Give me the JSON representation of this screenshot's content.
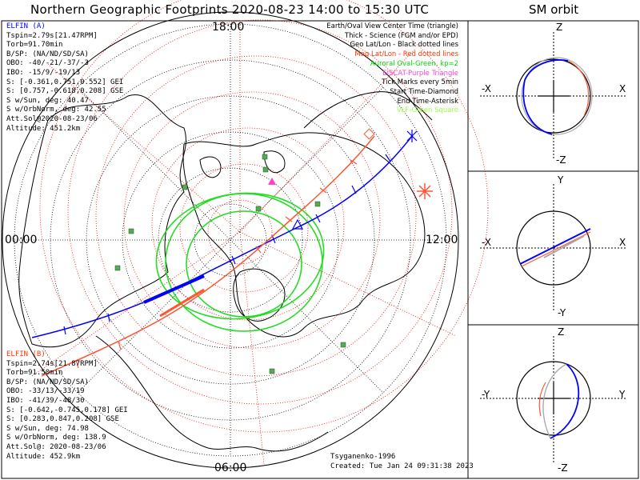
{
  "title": "Northern Geographic Footprints 2020-08-23 14:00 to 15:30 UTC",
  "sm_title": "SM orbit",
  "clock": {
    "top": "18:00",
    "left": "00:00",
    "right": "12:00",
    "bottom": "06:00"
  },
  "elfin_a": {
    "name": "ELFIN (A)",
    "lines": [
      "Tspin=2.79s[21.47RPM]",
      "Torb=91.70min",
      "B/SP: (NA/ND/SD/SA)",
      "OBO: -40/-21/-37/-3",
      "IBO: -15/9/-19/13",
      "S: [-0.361,0.751,0.552] GEI",
      "S: [0.757,-0.618,0.208] GSE",
      "S w/Sun, deg: 40.47",
      "S w/OrbNorm, deg: 42.55",
      "Att.Sol@2020-08-23/06",
      "Altitude: 451.2km"
    ]
  },
  "elfin_b": {
    "name": "ELFIN (B)",
    "lines": [
      "Tspin=2.74s[21.87RPM]",
      "Torb=91.50min",
      "B/SP: (NA/ND/SD/SA)",
      "OBO: -33/13/-33/19",
      "IBO: -41/39/-48/30",
      "S: [-0.642,-0.745,0.178] GEI",
      "S: [0.283,0.847,0.208] GSE",
      "S w/Sun, deg: 74.98",
      "S w/OrbNorm, deg: 138.9",
      "Att.Sol@: 2020-08-23/06",
      "Altitude: 452.9km"
    ]
  },
  "legend": [
    {
      "text": "Earth/Oval View Center Time (triangle)",
      "color": "#000000"
    },
    {
      "text": "Thick - Science (FGM and/or EPD)",
      "color": "#000000"
    },
    {
      "text": "Geo Lat/Lon - Black dotted lines",
      "color": "#000000"
    },
    {
      "text": "Mag Lat/Lon - Red dotted lines",
      "color": "#ff0000"
    },
    {
      "text": "Auroral Oval-Green, kp=2",
      "color": "#00dd00"
    },
    {
      "text": "EISCAT-Purple Triangle",
      "color": "#ff44cc"
    },
    {
      "text": "Tick Marks every 5min",
      "color": "#000000"
    },
    {
      "text": "Start Time-Diamond",
      "color": "#000000"
    },
    {
      "text": "End Time-Asterisk",
      "color": "#000000"
    },
    {
      "text": "VLF-Green Square",
      "color": "#99ff44"
    }
  ],
  "credit": "Tsyganenko-1996",
  "created": "Created: Tue Jan 24 09:31:38 2023",
  "sm_panels": [
    {
      "top": "Z",
      "bottom": "-Z",
      "left": "-X",
      "right": "X"
    },
    {
      "top": "Y",
      "bottom": "-Y",
      "left": "-X",
      "right": "X"
    },
    {
      "top": "Z",
      "bottom": "-Z",
      "left": "-Y",
      "right": "Y"
    }
  ],
  "colors": {
    "elfin_a": "#0000ff",
    "elfin_b": "#ff5533",
    "oval": "#22dd22",
    "mag_grid": "#ff0000",
    "vlf": "#55aa55"
  }
}
